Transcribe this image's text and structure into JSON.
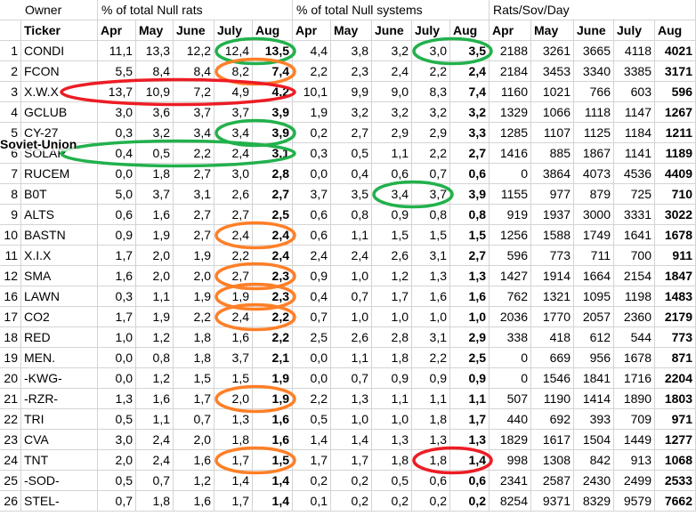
{
  "header": {
    "owner": "Owner",
    "groups": [
      "% of total Null rats",
      "% of total Null systems",
      "Rats/Sov/Day"
    ],
    "ticker": "Ticker",
    "months": [
      "Apr",
      "May",
      "June",
      "July",
      "Aug",
      "Apr",
      "May",
      "June",
      "July",
      "Aug",
      "Apr",
      "May",
      "June",
      "July",
      "Aug"
    ]
  },
  "annotation": "Soviet-Union",
  "rows": [
    [
      "1",
      "CONDI",
      "11,1",
      "13,3",
      "12,2",
      "12,4",
      "13,5",
      "4,4",
      "3,8",
      "3,2",
      "3,0",
      "3,5",
      "2188",
      "3261",
      "3665",
      "4118",
      "4021"
    ],
    [
      "2",
      "FCON",
      "5,5",
      "8,4",
      "8,4",
      "8,2",
      "7,4",
      "2,2",
      "2,3",
      "2,4",
      "2,2",
      "2,4",
      "2184",
      "3453",
      "3340",
      "3385",
      "3171"
    ],
    [
      "3",
      "X.W.X",
      "13,7",
      "10,9",
      "7,2",
      "4,9",
      "4,2",
      "10,1",
      "9,9",
      "9,0",
      "8,3",
      "7,4",
      "1160",
      "1021",
      "766",
      "603",
      "596"
    ],
    [
      "4",
      "GCLUB",
      "3,0",
      "3,6",
      "3,7",
      "3,7",
      "3,9",
      "1,9",
      "3,2",
      "3,2",
      "3,2",
      "3,2",
      "1329",
      "1066",
      "1118",
      "1147",
      "1267"
    ],
    [
      "5",
      "CY-27",
      "0,3",
      "3,2",
      "3,4",
      "3,4",
      "3,9",
      "0,2",
      "2,7",
      "2,9",
      "2,9",
      "3,3",
      "1285",
      "1107",
      "1125",
      "1184",
      "1211"
    ],
    [
      "6",
      "SOLAR",
      "0,4",
      "0,5",
      "2,2",
      "2,4",
      "3,1",
      "0,3",
      "0,5",
      "1,1",
      "2,2",
      "2,7",
      "1416",
      "885",
      "1867",
      "1141",
      "1189"
    ],
    [
      "7",
      "RUCEM",
      "0,0",
      "1,8",
      "2,7",
      "3,0",
      "2,8",
      "0,0",
      "0,4",
      "0,6",
      "0,7",
      "0,6",
      "0",
      "3864",
      "4073",
      "4536",
      "4409"
    ],
    [
      "8",
      "B0T",
      "5,0",
      "3,7",
      "3,1",
      "2,6",
      "2,7",
      "3,7",
      "3,5",
      "3,4",
      "3,7",
      "3,9",
      "1155",
      "977",
      "879",
      "725",
      "710"
    ],
    [
      "9",
      "ALTS",
      "0,6",
      "1,6",
      "2,7",
      "2,7",
      "2,5",
      "0,6",
      "0,8",
      "0,9",
      "0,8",
      "0,8",
      "919",
      "1937",
      "3000",
      "3331",
      "3022"
    ],
    [
      "10",
      "BASTN",
      "0,9",
      "1,9",
      "2,7",
      "2,4",
      "2,4",
      "0,6",
      "1,1",
      "1,5",
      "1,5",
      "1,5",
      "1256",
      "1588",
      "1749",
      "1641",
      "1678"
    ],
    [
      "11",
      "X.I.X",
      "1,7",
      "2,0",
      "1,9",
      "2,2",
      "2,4",
      "2,4",
      "2,4",
      "2,6",
      "3,1",
      "2,7",
      "596",
      "773",
      "711",
      "700",
      "911"
    ],
    [
      "12",
      "SMA",
      "1,6",
      "2,0",
      "2,0",
      "2,7",
      "2,3",
      "0,9",
      "1,0",
      "1,2",
      "1,3",
      "1,3",
      "1427",
      "1914",
      "1664",
      "2154",
      "1847"
    ],
    [
      "16",
      "LAWN",
      "0,3",
      "1,1",
      "1,9",
      "1,9",
      "2,3",
      "0,4",
      "0,7",
      "1,7",
      "1,6",
      "1,6",
      "762",
      "1321",
      "1095",
      "1198",
      "1483"
    ],
    [
      "17",
      "CO2",
      "1,7",
      "1,9",
      "2,2",
      "2,4",
      "2,2",
      "0,7",
      "1,0",
      "1,0",
      "1,0",
      "1,0",
      "2036",
      "1770",
      "2057",
      "2360",
      "2179"
    ],
    [
      "18",
      "RED",
      "1,0",
      "1,2",
      "1,8",
      "1,6",
      "2,2",
      "2,5",
      "2,6",
      "2,8",
      "3,1",
      "2,9",
      "338",
      "418",
      "612",
      "544",
      "773"
    ],
    [
      "19",
      "MEN.",
      "0,0",
      "0,8",
      "1,8",
      "3,7",
      "2,1",
      "0,0",
      "1,1",
      "1,8",
      "2,2",
      "2,5",
      "0",
      "669",
      "956",
      "1678",
      "871"
    ],
    [
      "20",
      "-KWG-",
      "0,0",
      "1,2",
      "1,5",
      "1,5",
      "1,9",
      "0,0",
      "0,7",
      "0,9",
      "0,9",
      "0,9",
      "0",
      "1546",
      "1841",
      "1716",
      "2204"
    ],
    [
      "21",
      "-RZR-",
      "1,3",
      "1,6",
      "1,7",
      "2,0",
      "1,9",
      "2,2",
      "1,3",
      "1,1",
      "1,1",
      "1,1",
      "507",
      "1190",
      "1414",
      "1890",
      "1803"
    ],
    [
      "22",
      "TRI",
      "0,5",
      "1,1",
      "0,7",
      "1,3",
      "1,6",
      "0,5",
      "1,0",
      "1,0",
      "1,8",
      "1,7",
      "440",
      "692",
      "393",
      "709",
      "971"
    ],
    [
      "23",
      "CVA",
      "3,0",
      "2,4",
      "2,0",
      "1,8",
      "1,6",
      "1,4",
      "1,4",
      "1,3",
      "1,3",
      "1,3",
      "1829",
      "1617",
      "1504",
      "1449",
      "1277"
    ],
    [
      "24",
      "TNT",
      "2,0",
      "2,4",
      "1,6",
      "1,7",
      "1,5",
      "1,7",
      "1,7",
      "1,8",
      "1,8",
      "1,4",
      "998",
      "1308",
      "842",
      "913",
      "1068"
    ],
    [
      "25",
      "-SOD-",
      "0,5",
      "0,7",
      "1,2",
      "1,4",
      "1,4",
      "0,2",
      "0,2",
      "0,5",
      "0,6",
      "0,6",
      "2341",
      "2587",
      "2430",
      "2499",
      "2533"
    ],
    [
      "26",
      "STEL-",
      "0,7",
      "1,8",
      "1,6",
      "1,7",
      "1,4",
      "0,1",
      "0,2",
      "0,2",
      "0,2",
      "0,2",
      "8254",
      "9371",
      "8329",
      "9579",
      "7662"
    ]
  ]
}
